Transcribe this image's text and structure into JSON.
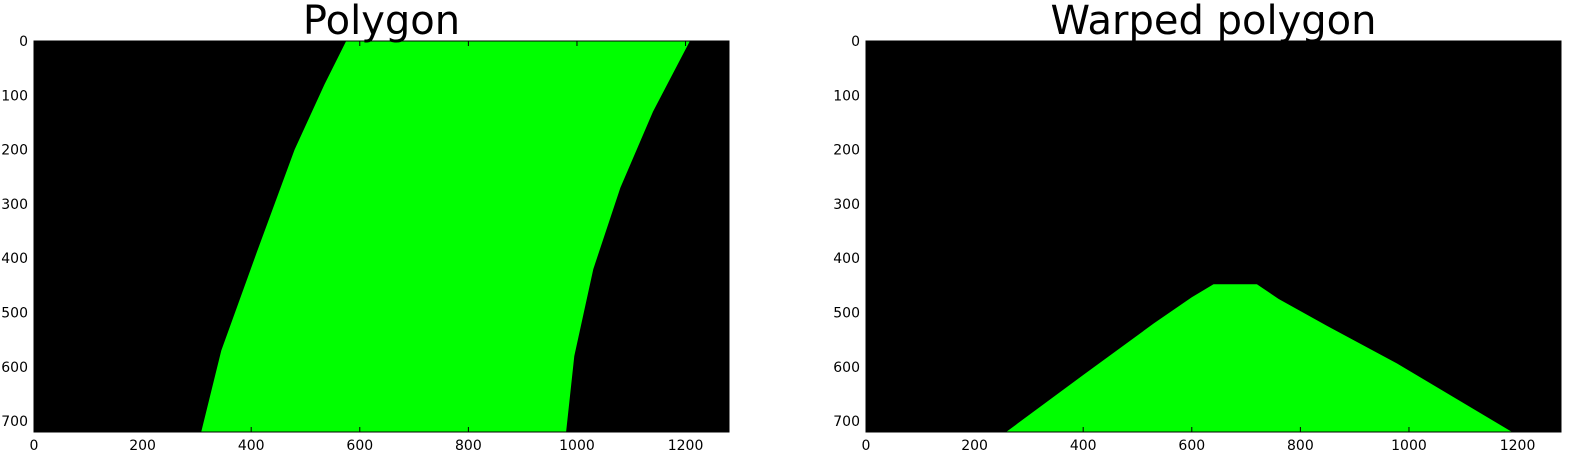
{
  "colors": {
    "background": "#000000",
    "fill": "#00ff00",
    "axes": "#000000"
  },
  "chart_data": [
    {
      "type": "area",
      "title": "Polygon",
      "xlim": [
        0,
        1280
      ],
      "ylim": [
        720,
        0
      ],
      "xticks": [
        0,
        200,
        400,
        600,
        800,
        1000,
        1200
      ],
      "yticks": [
        0,
        100,
        200,
        300,
        400,
        500,
        600,
        700
      ],
      "grid": false,
      "polygon": [
        [
          575,
          0
        ],
        [
          1208,
          0
        ],
        [
          1140,
          130
        ],
        [
          1080,
          270
        ],
        [
          1030,
          420
        ],
        [
          995,
          580
        ],
        [
          980,
          720
        ],
        [
          308,
          720
        ],
        [
          345,
          570
        ],
        [
          410,
          390
        ],
        [
          480,
          200
        ],
        [
          535,
          80
        ]
      ]
    },
    {
      "type": "area",
      "title": "Warped polygon",
      "xlim": [
        0,
        1280
      ],
      "ylim": [
        720,
        0
      ],
      "xticks": [
        0,
        200,
        400,
        600,
        800,
        1000,
        1200
      ],
      "yticks": [
        0,
        100,
        200,
        300,
        400,
        500,
        600,
        700
      ],
      "grid": false,
      "polygon": [
        [
          640,
          448
        ],
        [
          720,
          448
        ],
        [
          760,
          475
        ],
        [
          850,
          525
        ],
        [
          980,
          595
        ],
        [
          1190,
          720
        ],
        [
          258,
          720
        ],
        [
          400,
          615
        ],
        [
          530,
          520
        ],
        [
          600,
          472
        ]
      ]
    }
  ]
}
